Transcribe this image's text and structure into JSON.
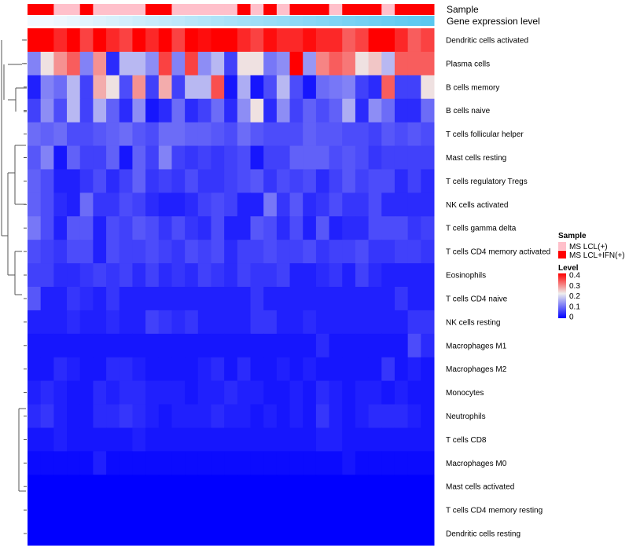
{
  "chart_data": {
    "type": "heatmap",
    "annotation_labels": [
      "Sample",
      "Gene expression level"
    ],
    "rows": [
      "Dendritic cells activated",
      "Plasma cells",
      "B cells memory",
      "B cells naive",
      "T cells follicular helper",
      "Mast cells resting",
      "T cells regulatory  Tregs",
      "NK cells activated",
      "T cells gamma delta",
      "T cells CD4 memory activated",
      "Eosinophils",
      "T cells CD4 naive",
      "NK cells resting",
      "Macrophages M1",
      "Macrophages M2",
      "Monocytes",
      "Neutrophils",
      "T cells CD8",
      "Macrophages M0",
      "Mast cells activated",
      "T cells CD4 memory resting",
      "Dendritic cells resting"
    ],
    "sample_groups": [
      1,
      1,
      0,
      0,
      1,
      0,
      0,
      0,
      0,
      1,
      1,
      0,
      0,
      0,
      0,
      0,
      1,
      0,
      1,
      0,
      1,
      1,
      1,
      0,
      1,
      1,
      1,
      0,
      1,
      1,
      1
    ],
    "gene_expression_level": [
      0.4,
      0.4,
      0.39,
      0.38,
      0.37,
      0.36,
      0.35,
      0.34,
      0.33,
      0.32,
      0.31,
      0.3,
      0.29,
      0.28,
      0.27,
      0.26,
      0.25,
      0.24,
      0.23,
      0.22,
      0.21,
      0.2,
      0.19,
      0.18,
      0.17,
      0.16,
      0.15,
      0.14,
      0.13,
      0.12,
      0.11
    ],
    "values": [
      [
        0.4,
        0.4,
        0.37,
        0.4,
        0.35,
        0.4,
        0.37,
        0.35,
        0.4,
        0.37,
        0.4,
        0.35,
        0.4,
        0.39,
        0.4,
        0.4,
        0.37,
        0.35,
        0.39,
        0.37,
        0.37,
        0.39,
        0.37,
        0.37,
        0.33,
        0.35,
        0.4,
        0.4,
        0.37,
        0.33,
        0.35
      ],
      [
        0.12,
        0.23,
        0.29,
        0.33,
        0.12,
        0.29,
        0.04,
        0.17,
        0.17,
        0.13,
        0.35,
        0.12,
        0.35,
        0.13,
        0.17,
        0.06,
        0.23,
        0.23,
        0.11,
        0.13,
        0.4,
        0.14,
        0.3,
        0.33,
        0.31,
        0.23,
        0.25,
        0.17,
        0.33,
        0.33,
        0.33
      ],
      [
        0.03,
        0.12,
        0.1,
        0.17,
        0.06,
        0.27,
        0.23,
        0.07,
        0.29,
        0.06,
        0.27,
        0.06,
        0.17,
        0.17,
        0.34,
        0.02,
        0.16,
        0.02,
        0.07,
        0.17,
        0.07,
        0.02,
        0.1,
        0.11,
        0.12,
        0.06,
        0.04,
        0.33,
        0.06,
        0.06,
        0.23
      ],
      [
        0.06,
        0.13,
        0.07,
        0.17,
        0.06,
        0.16,
        0.09,
        0.04,
        0.13,
        0.02,
        0.04,
        0.1,
        0.04,
        0.06,
        0.1,
        0.04,
        0.13,
        0.23,
        0.04,
        0.13,
        0.06,
        0.09,
        0.07,
        0.09,
        0.16,
        0.04,
        0.13,
        0.1,
        0.04,
        0.04,
        0.1
      ],
      [
        0.1,
        0.09,
        0.1,
        0.07,
        0.07,
        0.08,
        0.09,
        0.1,
        0.08,
        0.07,
        0.1,
        0.1,
        0.09,
        0.09,
        0.08,
        0.07,
        0.1,
        0.08,
        0.07,
        0.07,
        0.07,
        0.09,
        0.08,
        0.08,
        0.07,
        0.07,
        0.06,
        0.08,
        0.07,
        0.08,
        0.07
      ],
      [
        0.08,
        0.12,
        0.02,
        0.09,
        0.06,
        0.06,
        0.09,
        0.02,
        0.09,
        0.06,
        0.12,
        0.06,
        0.05,
        0.06,
        0.05,
        0.06,
        0.07,
        0.02,
        0.06,
        0.06,
        0.09,
        0.09,
        0.09,
        0.07,
        0.08,
        0.07,
        0.05,
        0.06,
        0.06,
        0.06,
        0.06
      ],
      [
        0.09,
        0.07,
        0.03,
        0.03,
        0.05,
        0.07,
        0.04,
        0.06,
        0.09,
        0.05,
        0.06,
        0.05,
        0.07,
        0.05,
        0.05,
        0.06,
        0.07,
        0.08,
        0.05,
        0.07,
        0.06,
        0.07,
        0.04,
        0.06,
        0.08,
        0.06,
        0.07,
        0.07,
        0.04,
        0.06,
        0.04
      ],
      [
        0.09,
        0.07,
        0.04,
        0.03,
        0.1,
        0.05,
        0.05,
        0.07,
        0.06,
        0.04,
        0.03,
        0.03,
        0.04,
        0.06,
        0.07,
        0.06,
        0.03,
        0.03,
        0.11,
        0.05,
        0.08,
        0.04,
        0.05,
        0.07,
        0.05,
        0.05,
        0.07,
        0.04,
        0.04,
        0.04,
        0.04
      ],
      [
        0.11,
        0.07,
        0.03,
        0.08,
        0.08,
        0.03,
        0.07,
        0.06,
        0.08,
        0.07,
        0.05,
        0.07,
        0.05,
        0.04,
        0.07,
        0.03,
        0.03,
        0.08,
        0.07,
        0.04,
        0.07,
        0.03,
        0.08,
        0.03,
        0.04,
        0.04,
        0.07,
        0.07,
        0.07,
        0.05,
        0.06
      ],
      [
        0.07,
        0.06,
        0.05,
        0.07,
        0.07,
        0.03,
        0.07,
        0.06,
        0.06,
        0.07,
        0.06,
        0.05,
        0.07,
        0.06,
        0.07,
        0.04,
        0.06,
        0.06,
        0.07,
        0.06,
        0.06,
        0.07,
        0.05,
        0.06,
        0.06,
        0.07,
        0.05,
        0.05,
        0.06,
        0.06,
        0.05
      ],
      [
        0.06,
        0.06,
        0.04,
        0.04,
        0.05,
        0.06,
        0.05,
        0.06,
        0.04,
        0.06,
        0.04,
        0.05,
        0.04,
        0.06,
        0.05,
        0.04,
        0.06,
        0.05,
        0.05,
        0.06,
        0.03,
        0.03,
        0.04,
        0.05,
        0.03,
        0.06,
        0.04,
        0.03,
        0.03,
        0.03,
        0.03
      ],
      [
        0.08,
        0.03,
        0.03,
        0.05,
        0.04,
        0.03,
        0.05,
        0.03,
        0.03,
        0.03,
        0.03,
        0.03,
        0.03,
        0.03,
        0.03,
        0.03,
        0.03,
        0.05,
        0.03,
        0.03,
        0.03,
        0.03,
        0.03,
        0.03,
        0.03,
        0.03,
        0.03,
        0.03,
        0.05,
        0.03,
        0.03
      ],
      [
        0.03,
        0.03,
        0.03,
        0.04,
        0.03,
        0.03,
        0.04,
        0.03,
        0.03,
        0.06,
        0.05,
        0.04,
        0.05,
        0.03,
        0.03,
        0.03,
        0.03,
        0.05,
        0.05,
        0.03,
        0.03,
        0.04,
        0.03,
        0.03,
        0.03,
        0.03,
        0.03,
        0.03,
        0.03,
        0.05,
        0.05
      ],
      [
        0.02,
        0.02,
        0.02,
        0.02,
        0.02,
        0.02,
        0.02,
        0.02,
        0.02,
        0.02,
        0.02,
        0.02,
        0.02,
        0.02,
        0.02,
        0.02,
        0.02,
        0.02,
        0.02,
        0.02,
        0.02,
        0.02,
        0.04,
        0.02,
        0.02,
        0.02,
        0.02,
        0.02,
        0.02,
        0.07,
        0.04
      ],
      [
        0.02,
        0.02,
        0.04,
        0.03,
        0.02,
        0.02,
        0.04,
        0.04,
        0.03,
        0.02,
        0.02,
        0.02,
        0.02,
        0.03,
        0.04,
        0.02,
        0.04,
        0.02,
        0.02,
        0.03,
        0.02,
        0.03,
        0.02,
        0.02,
        0.02,
        0.02,
        0.02,
        0.05,
        0.02,
        0.03,
        0.02
      ],
      [
        0.03,
        0.04,
        0.03,
        0.02,
        0.02,
        0.04,
        0.03,
        0.04,
        0.04,
        0.03,
        0.03,
        0.03,
        0.02,
        0.03,
        0.03,
        0.04,
        0.03,
        0.03,
        0.02,
        0.02,
        0.03,
        0.02,
        0.04,
        0.03,
        0.02,
        0.03,
        0.03,
        0.02,
        0.03,
        0.02,
        0.02
      ],
      [
        0.04,
        0.05,
        0.03,
        0.02,
        0.02,
        0.04,
        0.04,
        0.05,
        0.04,
        0.03,
        0.02,
        0.03,
        0.03,
        0.03,
        0.04,
        0.03,
        0.03,
        0.02,
        0.03,
        0.02,
        0.03,
        0.02,
        0.05,
        0.03,
        0.02,
        0.03,
        0.04,
        0.04,
        0.04,
        0.03,
        0.02
      ],
      [
        0.02,
        0.02,
        0.03,
        0.02,
        0.02,
        0.02,
        0.02,
        0.02,
        0.03,
        0.02,
        0.02,
        0.02,
        0.02,
        0.02,
        0.02,
        0.02,
        0.02,
        0.02,
        0.02,
        0.02,
        0.02,
        0.02,
        0.03,
        0.03,
        0.02,
        0.02,
        0.02,
        0.02,
        0.02,
        0.02,
        0.02
      ],
      [
        0.01,
        0.01,
        0.01,
        0.01,
        0.01,
        0.03,
        0.01,
        0.01,
        0.01,
        0.01,
        0.01,
        0.01,
        0.01,
        0.01,
        0.01,
        0.01,
        0.01,
        0.01,
        0.01,
        0.01,
        0.01,
        0.01,
        0.01,
        0.01,
        0.02,
        0.01,
        0.01,
        0.01,
        0.01,
        0.01,
        0.01
      ],
      [
        0,
        0,
        0,
        0,
        0,
        0,
        0,
        0,
        0,
        0,
        0,
        0,
        0,
        0,
        0,
        0,
        0,
        0,
        0,
        0,
        0,
        0,
        0,
        0,
        0,
        0,
        0,
        0,
        0,
        0,
        0
      ],
      [
        0,
        0,
        0,
        0,
        0,
        0,
        0,
        0,
        0,
        0,
        0,
        0,
        0,
        0,
        0,
        0,
        0,
        0,
        0,
        0,
        0,
        0,
        0,
        0,
        0,
        0,
        0,
        0,
        0,
        0,
        0
      ],
      [
        0,
        0,
        0,
        0,
        0,
        0,
        0,
        0,
        0,
        0,
        0,
        0,
        0,
        0,
        0,
        0,
        0,
        0,
        0,
        0,
        0,
        0,
        0,
        0,
        0,
        0,
        0,
        0,
        0,
        0,
        0
      ]
    ],
    "legend_sample": {
      "title": "Sample",
      "items": [
        {
          "label": "MS LCL(+)",
          "color": "#ffc0cb"
        },
        {
          "label": "MS LCL+IFN(+)",
          "color": "#ff0000"
        }
      ]
    },
    "legend_level": {
      "title": "Level",
      "ticks": [
        0.4,
        0.3,
        0.2,
        0.1,
        0
      ],
      "tick_labels": [
        "0.4",
        "0.3",
        "0.2",
        "0.1",
        "0"
      ],
      "range": [
        0,
        0.4
      ]
    },
    "colors": {
      "low": "#0000ff",
      "mid": "#eeeeee",
      "high": "#ff0000",
      "gene_low": "#f2f9ff",
      "gene_high": "#5ac8f0"
    }
  }
}
